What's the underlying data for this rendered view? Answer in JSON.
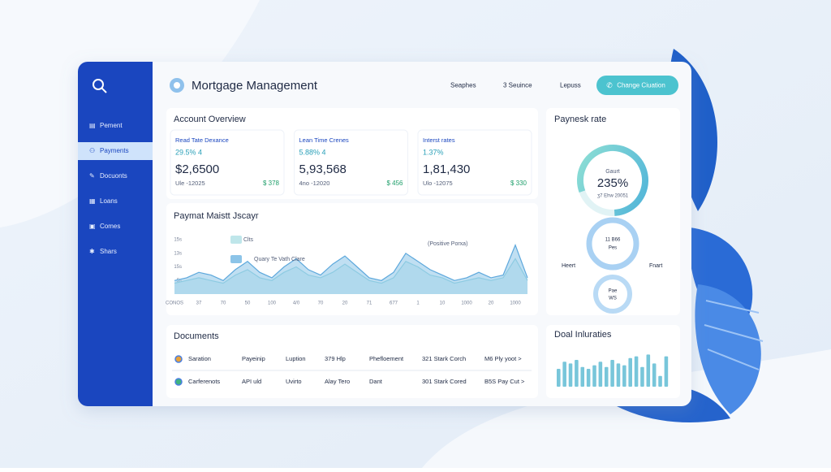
{
  "sidebar": {
    "items": [
      "Pement",
      "Payments",
      "Docuonts",
      "Loans",
      "Comes",
      "Shars"
    ],
    "active": 1
  },
  "header": {
    "title": "Mortgage Management",
    "links": [
      "Seaphes",
      "3 Seuince",
      "Lepuss"
    ],
    "button": "Change Ciuation"
  },
  "account_overview": {
    "title": "Account Overview",
    "cards": [
      {
        "label": "Read Tate Dexance",
        "rate": "29.5% 4",
        "amount": "$2,6500",
        "note": "Ule -12025",
        "change": "$ 378"
      },
      {
        "label": "Lean Time Crenes",
        "rate": "5.88% 4",
        "amount": "5,93,568",
        "note": "4no -12020",
        "change": "$ 456"
      },
      {
        "label": "Interst rates",
        "rate": "1.37%",
        "amount": "1,81,430",
        "note": "Ulo -12075",
        "change": "$ 330"
      }
    ]
  },
  "chart_data": [
    {
      "type": "area",
      "title": "Paymat Maistt Jscayr",
      "annotation": "(Positive Porxa)",
      "x": [
        0,
        1,
        2,
        3,
        4,
        5,
        6,
        7,
        8,
        9,
        10,
        11,
        12,
        13,
        14,
        15,
        16,
        17,
        18,
        19,
        20,
        21,
        22,
        23,
        24,
        25,
        26,
        27,
        28,
        29
      ],
      "series": [
        {
          "name": "Clts",
          "color": "#bfe6ea",
          "values": [
            4,
            5,
            6,
            5,
            4,
            7,
            9,
            6,
            5,
            8,
            10,
            7,
            6,
            8,
            11,
            8,
            5,
            4,
            6,
            12,
            10,
            7,
            6,
            4,
            5,
            6,
            5,
            6,
            13,
            5
          ]
        },
        {
          "name": "Quary Te Vath Clare",
          "color": "#8cc4e8",
          "values": [
            5,
            6,
            8,
            7,
            5,
            9,
            12,
            8,
            6,
            10,
            13,
            9,
            7,
            11,
            14,
            10,
            6,
            5,
            8,
            15,
            12,
            9,
            7,
            5,
            6,
            8,
            6,
            7,
            18,
            6
          ]
        }
      ],
      "xlim": [
        0,
        29
      ],
      "xticks": [
        {
          "value": 0,
          "label": "CONOS"
        },
        {
          "value": 2,
          "label": "37"
        },
        {
          "value": 4,
          "label": "70"
        },
        {
          "value": 6,
          "label": "50"
        },
        {
          "value": 8,
          "label": "100"
        },
        {
          "value": 10,
          "label": "4/0"
        },
        {
          "value": 12,
          "label": "70"
        },
        {
          "value": 14,
          "label": "20"
        },
        {
          "value": 16,
          "label": "71"
        },
        {
          "value": 18,
          "label": "677"
        },
        {
          "value": 20,
          "label": "1"
        },
        {
          "value": 22,
          "label": "10"
        },
        {
          "value": 24,
          "label": "1000"
        },
        {
          "value": 26,
          "label": "20"
        },
        {
          "value": 28,
          "label": "1000"
        }
      ],
      "ylim": [
        0,
        20
      ],
      "yticks": [
        {
          "value": 5,
          "label": "5s"
        },
        {
          "value": 10,
          "label": "15s"
        },
        {
          "value": 15,
          "label": "13s"
        },
        {
          "value": 20,
          "label": "15s"
        }
      ],
      "grid": false
    },
    {
      "type": "bar",
      "title": "Doal Inluraties",
      "values": [
        20,
        28,
        26,
        30,
        22,
        20,
        24,
        28,
        22,
        30,
        26,
        24,
        32,
        34,
        22,
        36,
        26,
        12,
        34
      ],
      "color": "#78c6da",
      "ylim": [
        0,
        40
      ]
    }
  ],
  "payment_rate": {
    "title": "Paynesk rate",
    "gauge": {
      "caption": "Gaurt",
      "value": "235%",
      "note": "ʒ7 Ehw 20051"
    },
    "ring2": [
      "11 B66",
      "Pes"
    ],
    "left": "Heert",
    "right": "Fnart",
    "ring3": [
      "Pae",
      "WS"
    ]
  },
  "documents": {
    "title": "Documents",
    "rows": [
      [
        "Saration",
        "Payeinip",
        "Luption",
        "379 Hlp",
        "Phefloement",
        "321 Stark Corch",
        "M6 Ply yoot >"
      ],
      [
        "Carferenots",
        "API uld",
        "Uvirto",
        "Alay Tero",
        "Dant",
        "301 Stark Cored",
        "B5S Pay Cut >"
      ]
    ]
  }
}
